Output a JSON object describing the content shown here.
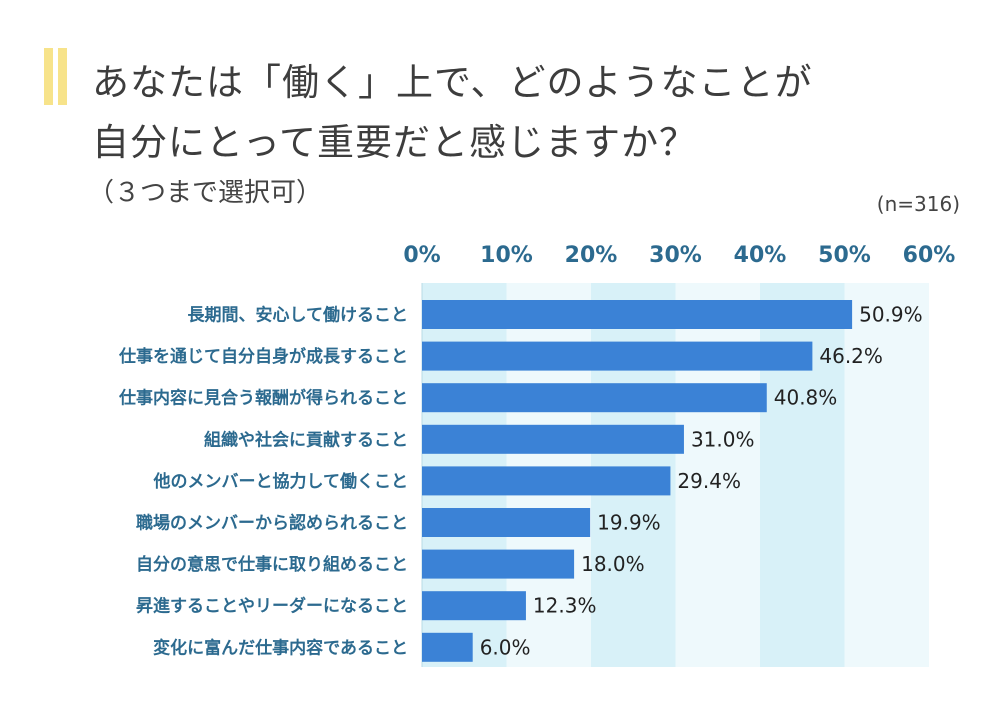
{
  "header": {
    "title_line1": "あなたは「働く」上で、どのようなことが",
    "title_line2": "自分にとって重要だと感じますか？",
    "subtitle": "（３つまで選択可）",
    "sample_size": "(n=316)"
  },
  "colors": {
    "bar": "#3b82d6",
    "band_dark": "#d8f1f8",
    "band_light": "#eef9fc",
    "accent": "#f7e38a",
    "axis_text": "#2c6a8f"
  },
  "chart_data": {
    "type": "bar",
    "orientation": "horizontal",
    "title": "あなたは「働く」上で、どのようなことが自分にとって重要だと感じますか？",
    "xlim": [
      0,
      60
    ],
    "xticks": [
      0,
      10,
      20,
      30,
      40,
      50,
      60
    ],
    "tick_suffix": "%",
    "categories": [
      "長期間、安心して働けること",
      "仕事を通じて自分自身が成長すること",
      "仕事内容に見合う報酬が得られること",
      "組織や社会に貢献すること",
      "他のメンバーと協力して働くこと",
      "職場のメンバーから認められること",
      "自分の意思で仕事に取り組めること",
      "昇進することやリーダーになること",
      "変化に富んだ仕事内容であること"
    ],
    "values": [
      50.9,
      46.2,
      40.8,
      31.0,
      29.4,
      19.9,
      18.0,
      12.3,
      6.0
    ],
    "value_labels": [
      "50.9%",
      "46.2%",
      "40.8%",
      "31.0%",
      "29.4%",
      "19.9%",
      "18.0%",
      "12.3%",
      "6.0%"
    ]
  }
}
